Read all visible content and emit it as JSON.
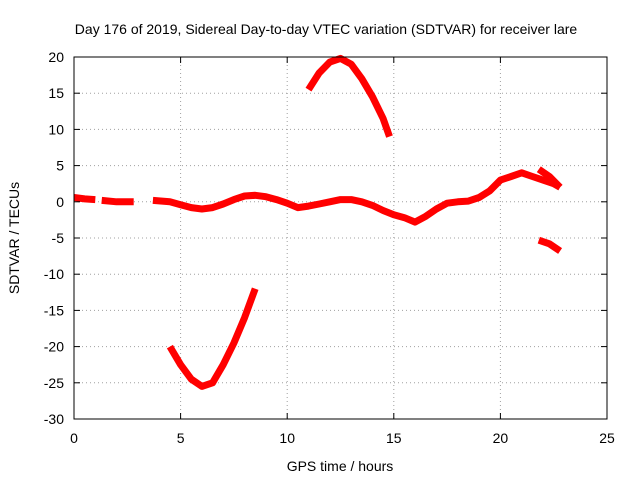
{
  "chart_data": {
    "type": "line",
    "title": "Day 176 of 2019, Sidereal Day-to-day VTEC variation (SDTVAR) for receiver lare",
    "xlabel": "GPS time / hours",
    "ylabel": "SDTVAR / TECUs",
    "xlim": [
      0,
      25
    ],
    "ylim": [
      -30,
      20
    ],
    "xticks": [
      "0",
      "5",
      "10",
      "15",
      "20",
      "25"
    ],
    "yticks": [
      "-30",
      "-25",
      "-20",
      "-15",
      "-10",
      "-5",
      "0",
      "5",
      "10",
      "15",
      "20"
    ],
    "grid": true,
    "legend": "none",
    "series_color": "#ff0000",
    "series": [
      {
        "name": "arc-1",
        "points": [
          [
            0,
            0.6
          ],
          [
            0.5,
            0.4
          ],
          [
            1,
            0.3
          ]
        ]
      },
      {
        "name": "arc-2",
        "points": [
          [
            1.3,
            0.2
          ],
          [
            2,
            0.0
          ],
          [
            2.8,
            0.0
          ]
        ]
      },
      {
        "name": "arc-3",
        "points": [
          [
            3.7,
            0.2
          ],
          [
            4.5,
            0
          ],
          [
            5,
            -0.4
          ],
          [
            5.5,
            -0.8
          ],
          [
            6,
            -1.0
          ],
          [
            6.5,
            -0.8
          ],
          [
            7,
            -0.3
          ],
          [
            7.5,
            0.3
          ],
          [
            8,
            0.8
          ],
          [
            8.5,
            0.9
          ],
          [
            9,
            0.7
          ],
          [
            9.5,
            0.3
          ],
          [
            10,
            -0.2
          ],
          [
            10.5,
            -0.8
          ],
          [
            11,
            -0.6
          ],
          [
            11.5,
            -0.3
          ],
          [
            12,
            0.0
          ],
          [
            12.5,
            0.3
          ],
          [
            13,
            0.3
          ],
          [
            13.5,
            0.0
          ],
          [
            14,
            -0.5
          ],
          [
            14.5,
            -1.2
          ],
          [
            15,
            -1.8
          ],
          [
            15.5,
            -2.2
          ],
          [
            16,
            -2.8
          ],
          [
            16.5,
            -2.0
          ],
          [
            17,
            -1.0
          ],
          [
            17.5,
            -0.2
          ],
          [
            18,
            0
          ],
          [
            18.5,
            0.1
          ],
          [
            19,
            0.6
          ],
          [
            19.5,
            1.5
          ],
          [
            20,
            3.0
          ],
          [
            20.5,
            3.5
          ],
          [
            21,
            4.0
          ],
          [
            21.5,
            3.5
          ],
          [
            22,
            3.0
          ],
          [
            22.5,
            2.5
          ],
          [
            22.8,
            2.0
          ]
        ]
      },
      {
        "name": "arc-4",
        "points": [
          [
            4.5,
            -20
          ],
          [
            5,
            -22.5
          ],
          [
            5.5,
            -24.5
          ],
          [
            6,
            -25.5
          ],
          [
            6.5,
            -25.0
          ],
          [
            7,
            -22.5
          ],
          [
            7.5,
            -19.5
          ],
          [
            8,
            -16
          ],
          [
            8.5,
            -12
          ]
        ]
      },
      {
        "name": "arc-5",
        "points": [
          [
            11,
            15.5
          ],
          [
            11.5,
            17.8
          ],
          [
            12,
            19.3
          ],
          [
            12.5,
            19.8
          ],
          [
            13,
            19
          ],
          [
            13.5,
            17
          ],
          [
            14,
            14.5
          ],
          [
            14.5,
            11.5
          ],
          [
            14.8,
            9
          ]
        ]
      },
      {
        "name": "arc-6",
        "points": [
          [
            21.8,
            4.5
          ],
          [
            22.3,
            3.5
          ],
          [
            22.8,
            2.0
          ]
        ]
      },
      {
        "name": "arc-7",
        "points": [
          [
            21.8,
            -5.3
          ],
          [
            22.3,
            -5.8
          ],
          [
            22.8,
            -6.8
          ]
        ]
      }
    ]
  }
}
